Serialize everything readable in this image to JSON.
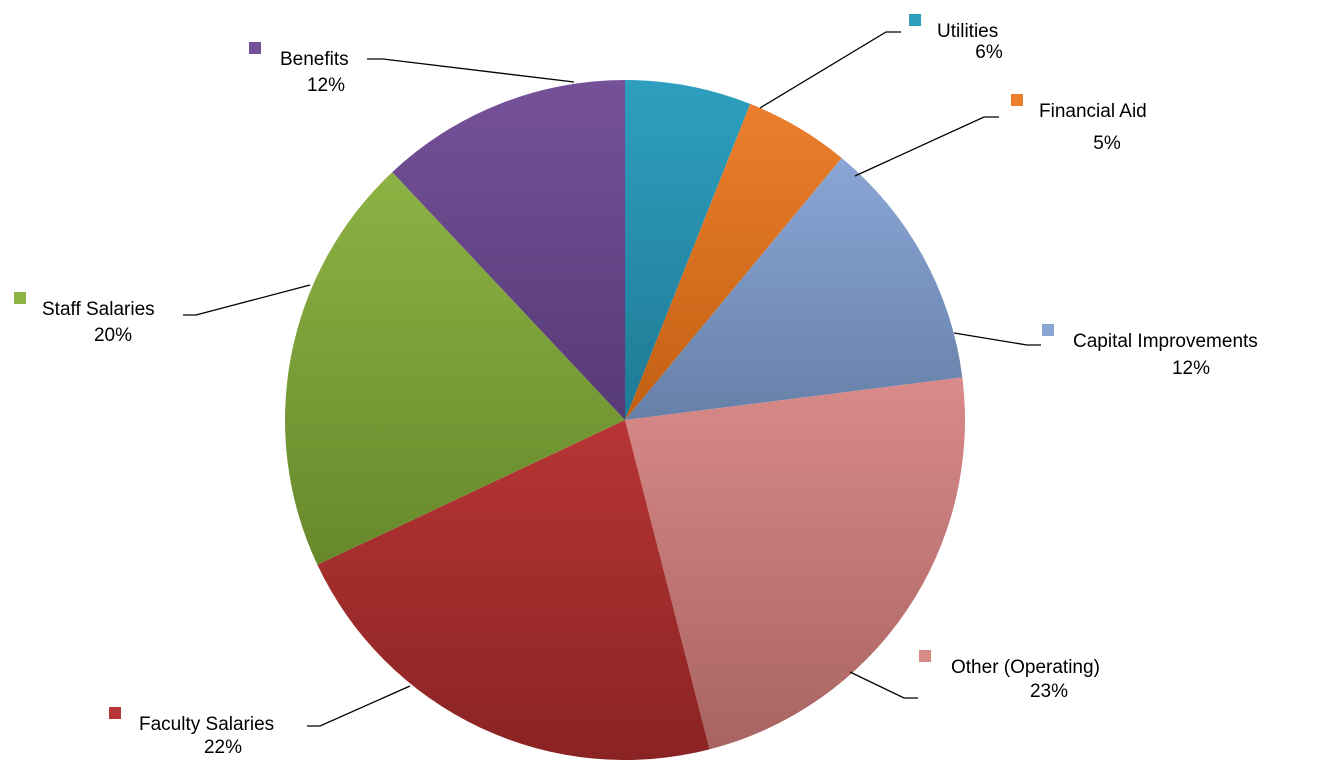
{
  "chart_data": {
    "type": "pie",
    "title": "",
    "start_angle_deg": 90,
    "direction": "clockwise",
    "legend": "none",
    "slices": [
      {
        "label": "Utilities",
        "value": 6,
        "display": "6%",
        "color": "#2e9fbf",
        "color_dark": "#1f7a94"
      },
      {
        "label": "Financial Aid",
        "value": 5,
        "display": "5%",
        "color": "#ec7f2d",
        "color_dark": "#c25f12"
      },
      {
        "label": "Capital Improvements",
        "value": 12,
        "display": "12%",
        "color": "#8aa6d6",
        "color_dark": "#6680a8"
      },
      {
        "label": "Other (Operating)",
        "value": 23,
        "display": "23%",
        "color": "#d98a89",
        "color_dark": "#a86462"
      },
      {
        "label": "Faculty Salaries",
        "value": 22,
        "display": "22%",
        "color": "#b83535",
        "color_dark": "#8a2323"
      },
      {
        "label": "Staff Salaries",
        "value": 20,
        "display": "20%",
        "color": "#8cb344",
        "color_dark": "#66882b"
      },
      {
        "label": "Benefits",
        "value": 12,
        "display": "12%",
        "color": "#75519a",
        "color_dark": "#563a75"
      }
    ]
  }
}
